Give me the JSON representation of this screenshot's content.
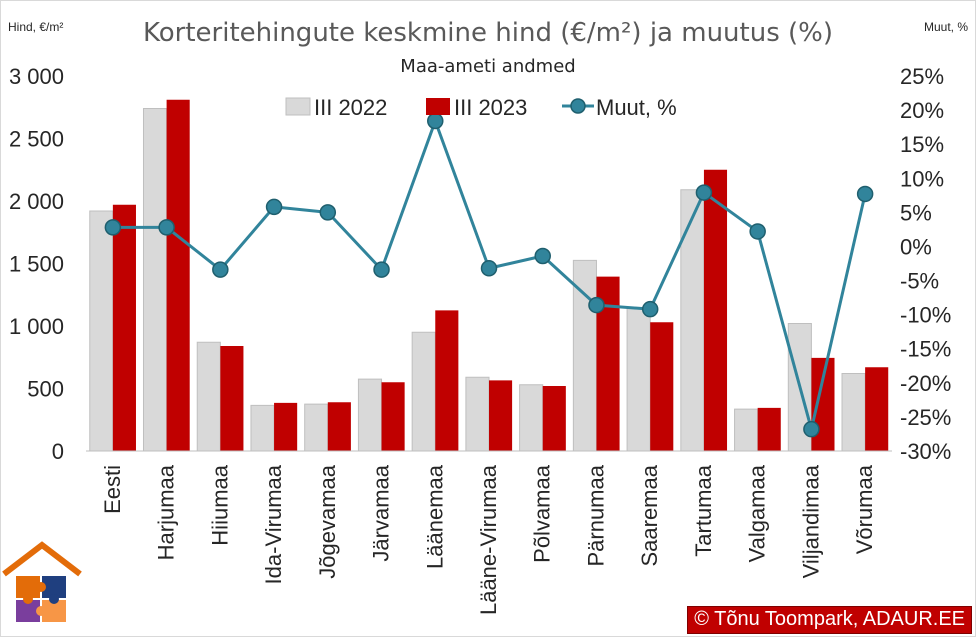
{
  "chart_data": {
    "type": "bar+line",
    "title": "Korteritehingute keskmine hind (€/m²) ja muutus (%)",
    "subtitle": "Maa-ameti andmed",
    "ylabel_left": "Hind, €/m²",
    "ylabel_right": "Muut, %",
    "ylim_left": [
      0,
      3000
    ],
    "ylim_right": [
      -30,
      25
    ],
    "yticks_left": [
      "0",
      "500",
      "1 000",
      "1 500",
      "2 000",
      "2 500",
      "3 000"
    ],
    "yticks_right": [
      "-30%",
      "-25%",
      "-20%",
      "-15%",
      "-10%",
      "-5%",
      "0%",
      "5%",
      "10%",
      "15%",
      "20%",
      "25%"
    ],
    "categories": [
      "Eesti",
      "Harjumaa",
      "Hiiumaa",
      "Ida-Virumaa",
      "Jõgevamaa",
      "Järvamaa",
      "Läänemaa",
      "Lääne-Virumaa",
      "Põlvamaa",
      "Pärnumaa",
      "Saaremaa",
      "Tartumaa",
      "Valgamaa",
      "Viljandimaa",
      "Võrumaa"
    ],
    "series": [
      {
        "name": "III 2022",
        "type": "bar",
        "axis": "left",
        "color": "#d9d9d9",
        "values": [
          1920,
          2740,
          870,
          365,
          375,
          575,
          950,
          590,
          530,
          1525,
          1140,
          2090,
          335,
          1020,
          620
        ]
      },
      {
        "name": "III 2023",
        "type": "bar",
        "axis": "left",
        "color": "#c00000",
        "values": [
          1970,
          2810,
          840,
          385,
          390,
          550,
          1125,
          565,
          520,
          1395,
          1030,
          2250,
          345,
          745,
          670
        ]
      },
      {
        "name": "Muut, %",
        "type": "line",
        "axis": "right",
        "color": "#31849b",
        "values": [
          2.8,
          2.8,
          -3.4,
          5.8,
          5.0,
          -3.4,
          18.4,
          -3.2,
          -1.4,
          -8.6,
          -9.2,
          7.9,
          2.2,
          -26.8,
          7.7
        ]
      }
    ],
    "legend_position": "top-center"
  },
  "credit": "© Tõnu Toompark, ADAUR.EE",
  "logo": {
    "colors": [
      "#e36c09",
      "#f79646",
      "#1f3f7f",
      "#7a3e9d"
    ]
  }
}
